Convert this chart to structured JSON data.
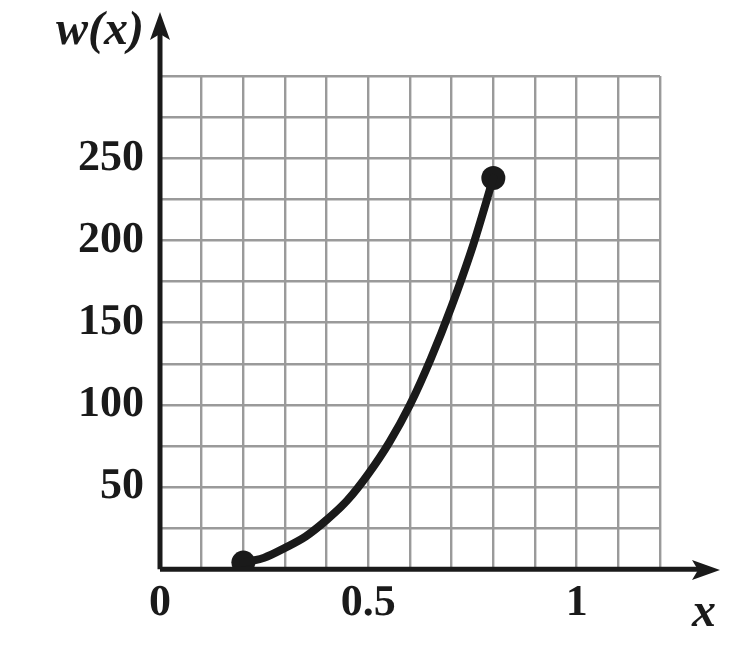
{
  "chart_data": {
    "type": "line",
    "xlabel": "x",
    "ylabel": "w(x)",
    "xlim": [
      0,
      1.2
    ],
    "ylim": [
      0,
      300
    ],
    "xticks": [
      0,
      {
        "value": 0.1,
        "label": null
      },
      {
        "value": 0.2,
        "label": null
      },
      {
        "value": 0.3,
        "label": null
      },
      {
        "value": 0.4,
        "label": null
      },
      0.5,
      {
        "value": 0.6,
        "label": null
      },
      {
        "value": 0.7,
        "label": null
      },
      {
        "value": 0.8,
        "label": null
      },
      {
        "value": 0.9,
        "label": null
      },
      1,
      {
        "value": 1.1,
        "label": null
      },
      {
        "value": 1.2,
        "label": null
      }
    ],
    "yticks": [
      {
        "value": 0,
        "label": null
      },
      {
        "value": 25,
        "label": null
      },
      50,
      {
        "value": 75,
        "label": null
      },
      100,
      {
        "value": 125,
        "label": null
      },
      150,
      {
        "value": 175,
        "label": null
      },
      200,
      {
        "value": 225,
        "label": null
      },
      250,
      {
        "value": 275,
        "label": null
      },
      {
        "value": 300,
        "label": null
      }
    ],
    "grid": true,
    "legend": false,
    "series": [
      {
        "type": "line",
        "color": "#1a1a1a",
        "marker": "none",
        "line_style": "solid",
        "x": [
          0.2,
          0.25,
          0.3,
          0.35,
          0.4,
          0.45,
          0.5,
          0.55,
          0.6,
          0.65,
          0.7,
          0.75,
          0.8
        ],
        "values": [
          4,
          7,
          13,
          20,
          30,
          42,
          58,
          77,
          100,
          128,
          160,
          196,
          238
        ]
      },
      {
        "type": "scatter",
        "color": "#1a1a1a",
        "marker": "circle",
        "x": [
          0.2,
          0.8
        ],
        "values": [
          4,
          238
        ]
      }
    ]
  }
}
